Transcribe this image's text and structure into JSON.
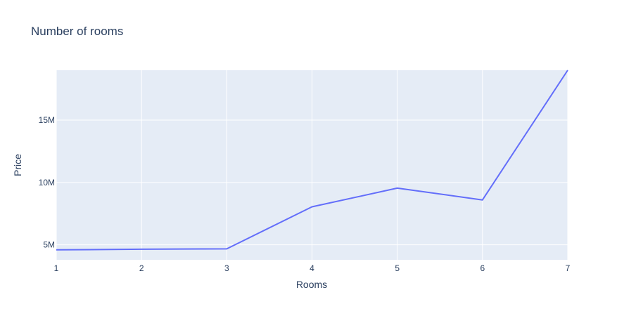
{
  "chart_data": {
    "type": "line",
    "title": "Number of rooms",
    "xlabel": "Rooms",
    "ylabel": "Price",
    "x": [
      1,
      2,
      3,
      4,
      5,
      6,
      7
    ],
    "series": [
      {
        "values": [
          4600000,
          4650000,
          4680000,
          8050000,
          9550000,
          8600000,
          19000000
        ]
      }
    ],
    "xlim": [
      1,
      7
    ],
    "ylim": [
      3800000,
      19000000
    ],
    "x_ticks": [
      1,
      2,
      3,
      4,
      5,
      6,
      7
    ],
    "x_tick_labels": [
      "1",
      "2",
      "3",
      "4",
      "5",
      "6",
      "7"
    ],
    "y_ticks": [
      5000000,
      10000000,
      15000000
    ],
    "y_tick_labels": [
      "5M",
      "10M",
      "15M"
    ],
    "grid": true,
    "colors": {
      "plot_background": "#e5ecf6",
      "grid": "#ffffff",
      "line": "#636efa",
      "text": "#2a3f5f"
    }
  }
}
